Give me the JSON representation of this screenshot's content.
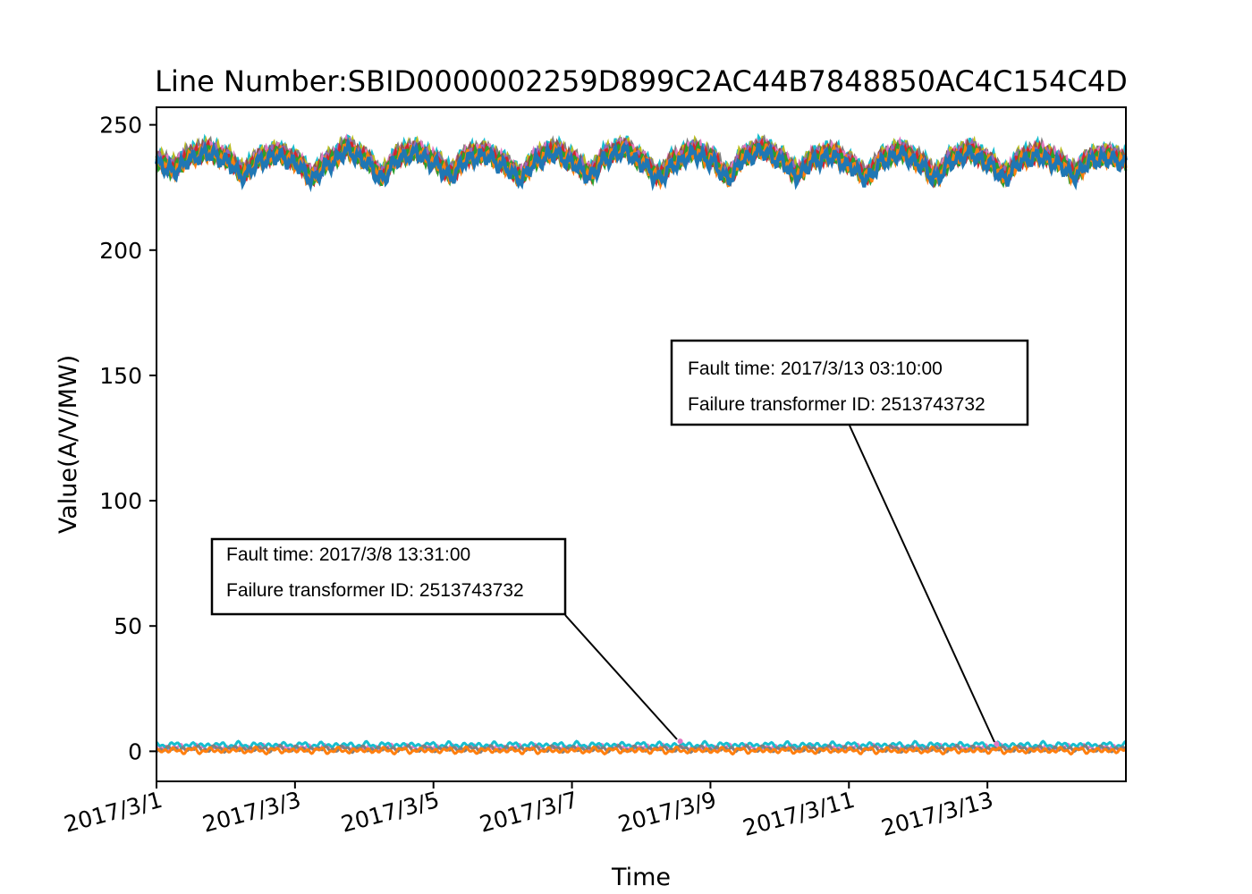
{
  "chart_data": {
    "type": "line",
    "title": "Line Number:SBID0000002259D899C2AC44B7848850AC4C154C4D",
    "xlabel": "Time",
    "ylabel": "Value(A/V/MW)",
    "x_start": "2017/3/1",
    "x_end": "2017/3/15",
    "x_ticks": [
      "2017/3/1",
      "2017/3/3",
      "2017/3/5",
      "2017/3/7",
      "2017/3/9",
      "2017/3/11",
      "2017/3/13"
    ],
    "ylim": [
      -12,
      257
    ],
    "y_ticks": [
      0,
      50,
      100,
      150,
      200,
      250
    ],
    "grid": false,
    "legend": "none",
    "colors": [
      "#1f77b4",
      "#ff7f0e",
      "#2ca02c",
      "#d62728",
      "#9467bd",
      "#8c564b",
      "#e377c2",
      "#7f7f7f",
      "#bcbd22",
      "#17becf"
    ],
    "voltage_profile": [
      [
        "2017/3/1 00:00",
        236
      ],
      [
        "2017/3/1 06:00",
        233
      ],
      [
        "2017/3/1 12:00",
        238
      ],
      [
        "2017/3/1 18:00",
        240
      ],
      [
        "2017/3/2 00:00",
        237
      ],
      [
        "2017/3/2 06:00",
        231
      ],
      [
        "2017/3/2 12:00",
        237
      ],
      [
        "2017/3/2 18:00",
        239
      ],
      [
        "2017/3/3 00:00",
        236
      ],
      [
        "2017/3/3 06:00",
        230
      ],
      [
        "2017/3/3 12:00",
        236
      ],
      [
        "2017/3/3 18:00",
        241
      ],
      [
        "2017/3/4 00:00",
        237
      ],
      [
        "2017/3/4 06:00",
        230
      ],
      [
        "2017/3/4 12:00",
        238
      ],
      [
        "2017/3/4 18:00",
        240
      ],
      [
        "2017/3/5 00:00",
        236
      ],
      [
        "2017/3/5 06:00",
        231
      ],
      [
        "2017/3/5 12:00",
        238
      ],
      [
        "2017/3/5 18:00",
        239
      ],
      [
        "2017/3/6 00:00",
        235
      ],
      [
        "2017/3/6 06:00",
        230
      ],
      [
        "2017/3/6 12:00",
        237
      ],
      [
        "2017/3/6 18:00",
        240
      ],
      [
        "2017/3/7 00:00",
        236
      ],
      [
        "2017/3/7 06:00",
        231
      ],
      [
        "2017/3/7 12:00",
        238
      ],
      [
        "2017/3/7 18:00",
        241
      ],
      [
        "2017/3/8 00:00",
        236
      ],
      [
        "2017/3/8 06:00",
        230
      ],
      [
        "2017/3/8 12:00",
        236
      ],
      [
        "2017/3/8 18:00",
        240
      ],
      [
        "2017/3/9 00:00",
        237
      ],
      [
        "2017/3/9 06:00",
        230
      ],
      [
        "2017/3/9 12:00",
        238
      ],
      [
        "2017/3/9 18:00",
        241
      ],
      [
        "2017/3/10 00:00",
        237
      ],
      [
        "2017/3/10 06:00",
        231
      ],
      [
        "2017/3/10 12:00",
        237
      ],
      [
        "2017/3/10 18:00",
        239
      ],
      [
        "2017/3/11 00:00",
        235
      ],
      [
        "2017/3/11 06:00",
        230
      ],
      [
        "2017/3/11 12:00",
        237
      ],
      [
        "2017/3/11 18:00",
        240
      ],
      [
        "2017/3/12 00:00",
        236
      ],
      [
        "2017/3/12 06:00",
        230
      ],
      [
        "2017/3/12 12:00",
        237
      ],
      [
        "2017/3/12 18:00",
        240
      ],
      [
        "2017/3/13 00:00",
        236
      ],
      [
        "2017/3/13 06:00",
        230
      ],
      [
        "2017/3/13 12:00",
        237
      ],
      [
        "2017/3/13 18:00",
        239
      ],
      [
        "2017/3/14 00:00",
        236
      ],
      [
        "2017/3/14 06:00",
        231
      ],
      [
        "2017/3/14 12:00",
        237
      ],
      [
        "2017/3/14 18:00",
        238
      ],
      [
        "2017/3/15 00:00",
        236
      ]
    ],
    "voltage_series_count": 10,
    "low_series": [
      {
        "color": "#e377c2",
        "values": [
          [
            "2017/3/1 00:00",
            1.5
          ],
          [
            "2017/3/15 00:00",
            1.5
          ]
        ]
      },
      {
        "color": "#17becf",
        "values": [
          [
            "2017/3/1 00:00",
            2.5
          ],
          [
            "2017/3/15 00:00",
            2.5
          ]
        ]
      },
      {
        "color": "#7f7f7f",
        "values": [
          [
            "2017/3/1 00:00",
            1.0
          ],
          [
            "2017/3/15 00:00",
            1.0
          ]
        ]
      },
      {
        "color": "#ff7f0e",
        "values": [
          [
            "2017/3/1 00:00",
            0.3
          ],
          [
            "2017/3/15 00:00",
            0.3
          ]
        ]
      }
    ],
    "annotations": [
      {
        "lines": [
          "Fault time: 2017/3/8 13:31:00",
          "Failure transformer ID: 2513743732"
        ],
        "point": [
          "2017/3/8 13:31",
          4
        ]
      },
      {
        "lines": [
          "Fault time: 2017/3/13 03:10:00",
          "Failure transformer ID: 2513743732"
        ],
        "point": [
          "2017/3/13 03:10",
          3
        ]
      }
    ]
  }
}
